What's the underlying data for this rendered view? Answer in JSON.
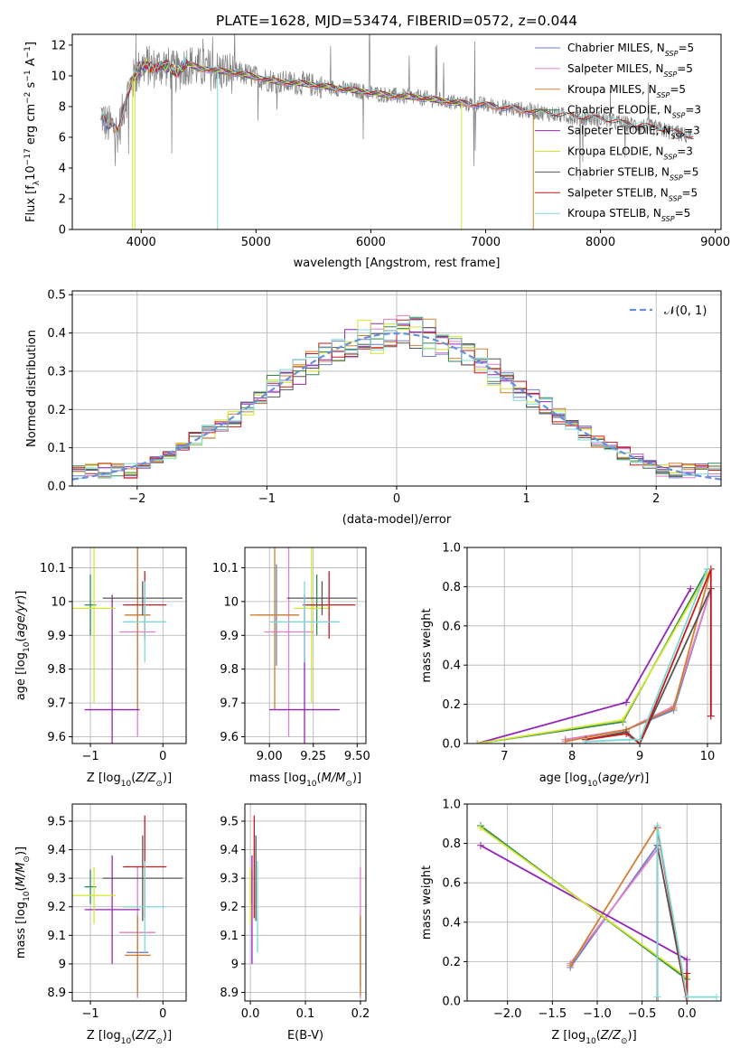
{
  "colors": {
    "chabrier_miles": "#6b7fc6",
    "salpeter_miles": "#e27fc6",
    "kroupa_miles": "#d08030",
    "chabrier_elodie": "#2e8a50",
    "salpeter_elodie": "#9326b4",
    "kroupa_elodie": "#d4e62c",
    "chabrier_stelib": "#555555",
    "salpeter_stelib": "#c81b1b",
    "kroupa_stelib": "#7fd8d8",
    "data": "#808080",
    "normal": "#6a8fdb",
    "grid": "#b0b0b0"
  },
  "chart_data": [
    {
      "type": "line",
      "title": "PLATE=1628, MJD=53474, FIBERID=0572, z=0.044",
      "xlabel": "wavelength [Angstrom, rest frame]",
      "ylabel": "Flux [f_λ10^-17 erg cm^-2 s^-1 A^-1]",
      "xlim": [
        3400,
        9050
      ],
      "ylim": [
        0,
        12.7
      ],
      "xticks": [
        4000,
        5000,
        6000,
        7000,
        8000,
        9000
      ],
      "yticks": [
        0,
        2,
        4,
        6,
        8,
        10,
        12
      ],
      "grid": false,
      "legend": "top-right",
      "continuum_x": [
        3650,
        3700,
        3750,
        3800,
        3850,
        3900,
        3950,
        4000,
        4050,
        4100,
        4200,
        4300,
        4400,
        4500,
        4600,
        4700,
        4800,
        4900,
        5000,
        5200,
        5400,
        5600,
        5800,
        6000,
        6200,
        6400,
        6600,
        6800,
        7000,
        7200,
        7400,
        7600,
        7800,
        8000,
        8200,
        8400,
        8600,
        8800
      ],
      "continuum_y": [
        7.5,
        6.8,
        6.7,
        6.3,
        8.0,
        9.3,
        10.0,
        10.6,
        10.7,
        10.5,
        10.7,
        10.2,
        10.8,
        10.5,
        10.4,
        10.3,
        10.2,
        10.1,
        9.9,
        9.6,
        9.5,
        9.3,
        9.1,
        8.9,
        8.7,
        8.6,
        8.4,
        8.2,
        8.1,
        7.9,
        7.7,
        7.5,
        7.3,
        7.2,
        6.9,
        6.7,
        6.4,
        6.0
      ],
      "series": [
        {
          "name": "Chabrier MILES, N_SSP=5",
          "key": "chabrier_miles",
          "xmin": 3650,
          "xmax": 7410
        },
        {
          "name": "Salpeter MILES, N_SSP=5",
          "key": "salpeter_miles",
          "xmin": 3650,
          "xmax": 7410
        },
        {
          "name": "Kroupa MILES, N_SSP=5",
          "key": "kroupa_miles",
          "xmin": 3650,
          "xmax": 7410
        },
        {
          "name": "Chabrier ELODIE, N_SSP=3",
          "key": "chabrier_elodie",
          "xmin": 3900,
          "xmax": 6790
        },
        {
          "name": "Salpeter ELODIE, N_SSP=3",
          "key": "salpeter_elodie",
          "xmin": 3900,
          "xmax": 6790
        },
        {
          "name": "Kroupa ELODIE, N_SSP=3",
          "key": "kroupa_elodie",
          "xmin": 3900,
          "xmax": 6790
        },
        {
          "name": "Chabrier STELIB, N_SSP=5",
          "key": "chabrier_stelib",
          "xmin": 3650,
          "xmax": 8810
        },
        {
          "name": "Salpeter STELIB, N_SSP=5",
          "key": "salpeter_stelib",
          "xmin": 3650,
          "xmax": 8810
        },
        {
          "name": "Kroupa STELIB, N_SSP=5",
          "key": "kroupa_stelib",
          "xmin": 3650,
          "xmax": 8810
        }
      ],
      "legend_entries": [
        {
          "pre": "Chabrier MILES, N",
          "sub": "SSP",
          "post": "=5"
        },
        {
          "pre": "Salpeter MILES, N",
          "sub": "SSP",
          "post": "=5"
        },
        {
          "pre": "Kroupa MILES, N",
          "sub": "SSP",
          "post": "=5"
        },
        {
          "pre": "Chabrier ELODIE, N",
          "sub": "SSP",
          "post": "=3"
        },
        {
          "pre": "Salpeter ELODIE, N",
          "sub": "SSP",
          "post": "=3"
        },
        {
          "pre": "Kroupa ELODIE, N",
          "sub": "SSP",
          "post": "=3"
        },
        {
          "pre": "Chabrier STELIB, N",
          "sub": "SSP",
          "post": "=5"
        },
        {
          "pre": "Salpeter STELIB, N",
          "sub": "SSP",
          "post": "=5"
        },
        {
          "pre": "Kroupa STELIB, N",
          "sub": "SSP",
          "post": "=5"
        }
      ]
    },
    {
      "type": "line",
      "xlabel": "(data-model)/error",
      "ylabel": "Normed distribution",
      "xlim": [
        -2.5,
        2.5
      ],
      "ylim": [
        0,
        0.51
      ],
      "xticks": [
        -2,
        -1,
        0,
        1,
        2
      ],
      "xtick_labels": [
        "−2",
        "−1",
        "0",
        "1",
        "2"
      ],
      "yticks": [
        0.0,
        0.1,
        0.2,
        0.3,
        0.4,
        0.5
      ],
      "ytick_labels": [
        "0.0",
        "0.1",
        "0.2",
        "0.3",
        "0.4",
        "0.5"
      ],
      "grid": true,
      "legend": "top-right",
      "legend_label": "𝒩(0, 1)",
      "bin_width": 0.1,
      "bin_start": -2.5,
      "description_series": "nine step histograms, one per model, approximately normal"
    },
    {
      "type": "scatter",
      "xlabel": "Z [log10(Z/Z☉)]",
      "ylabel": "age  [log10(age/yr)]",
      "xlim": [
        -1.25,
        0.32
      ],
      "ylim": [
        9.58,
        10.16
      ],
      "xticks": [
        -1,
        0
      ],
      "xtick_labels": [
        "−1",
        "0"
      ],
      "yticks": [
        9.6,
        9.7,
        9.8,
        9.9,
        10.0,
        10.1
      ],
      "grid": true,
      "points": [
        {
          "key": "chabrier_miles",
          "x": -0.35,
          "xerr": 0.15,
          "y": 9.96,
          "yerr": 0.15
        },
        {
          "key": "salpeter_miles",
          "x": -0.35,
          "xerr": 0.25,
          "y": 9.91,
          "yerr": 0.31
        },
        {
          "key": "kroupa_miles",
          "x": -0.35,
          "xerr": 0.18,
          "y": 9.96,
          "yerr": 0.28
        },
        {
          "key": "chabrier_elodie",
          "x": -1.0,
          "xerr": 0.08,
          "y": 9.99,
          "yerr": 0.09
        },
        {
          "key": "salpeter_elodie",
          "x": -0.7,
          "xerr": 0.38,
          "y": 9.68,
          "yerr": 0.34
        },
        {
          "key": "kroupa_elodie",
          "x": -0.95,
          "xerr": 0.3,
          "y": 9.98,
          "yerr": 0.28
        },
        {
          "key": "chabrier_stelib",
          "x": -0.28,
          "xerr": 0.55,
          "y": 10.01,
          "yerr": 0.05
        },
        {
          "key": "salpeter_stelib",
          "x": -0.25,
          "xerr": 0.3,
          "y": 9.99,
          "yerr": 0.1
        },
        {
          "key": "kroupa_stelib",
          "x": -0.25,
          "xerr": 0.3,
          "y": 9.94,
          "yerr": 0.12
        }
      ]
    },
    {
      "type": "scatter",
      "xlabel": "mass [log10(M/M☉)]",
      "xlim": [
        8.86,
        9.55
      ],
      "ylim": [
        9.58,
        10.16
      ],
      "xticks": [
        9.0,
        9.25,
        9.5
      ],
      "xtick_labels": [
        "9.00",
        "9.25",
        "9.50"
      ],
      "yticks": [
        9.6,
        9.7,
        9.8,
        9.9,
        10.0,
        10.1
      ],
      "grid": true,
      "points": [
        {
          "key": "chabrier_miles",
          "x": 9.04,
          "xerr": 0.12,
          "y": 9.96,
          "yerr": 0.15
        },
        {
          "key": "salpeter_miles",
          "x": 9.11,
          "xerr": 0.14,
          "y": 9.91,
          "yerr": 0.31
        },
        {
          "key": "kroupa_miles",
          "x": 9.03,
          "xerr": 0.14,
          "y": 9.96,
          "yerr": 0.28
        },
        {
          "key": "chabrier_elodie",
          "x": 9.27,
          "xerr": 0.06,
          "y": 9.99,
          "yerr": 0.09
        },
        {
          "key": "salpeter_elodie",
          "x": 9.2,
          "xerr": 0.2,
          "y": 9.68,
          "yerr": 0.34
        },
        {
          "key": "kroupa_elodie",
          "x": 9.24,
          "xerr": 0.1,
          "y": 9.98,
          "yerr": 0.28
        },
        {
          "key": "chabrier_stelib",
          "x": 9.3,
          "xerr": 0.2,
          "y": 10.01,
          "yerr": 0.05
        },
        {
          "key": "salpeter_stelib",
          "x": 9.34,
          "xerr": 0.15,
          "y": 9.99,
          "yerr": 0.1
        },
        {
          "key": "kroupa_stelib",
          "x": 9.2,
          "xerr": 0.2,
          "y": 9.94,
          "yerr": 0.12
        }
      ]
    },
    {
      "type": "line",
      "xlabel": "age  [log10(age/yr)]",
      "ylabel": "mass weight",
      "xlim": [
        6.45,
        10.2
      ],
      "ylim": [
        0,
        1.0
      ],
      "xticks": [
        7,
        8,
        9,
        10
      ],
      "yticks": [
        0.0,
        0.2,
        0.4,
        0.6,
        0.8,
        1.0
      ],
      "ytick_labels": [
        "0.0",
        "0.2",
        "0.4",
        "0.6",
        "0.8",
        "1.0"
      ],
      "grid": true,
      "series": [
        {
          "key": "chabrier_miles",
          "x": [
            7.9,
            8.8,
            9.5,
            10.05
          ],
          "y": [
            0.02,
            0.07,
            0.17,
            0.79
          ]
        },
        {
          "key": "salpeter_miles",
          "x": [
            7.9,
            8.8,
            9.5,
            10.05
          ],
          "y": [
            0.02,
            0.07,
            0.19,
            0.79
          ]
        },
        {
          "key": "kroupa_miles",
          "x": [
            7.9,
            8.8,
            9.5,
            10.05
          ],
          "y": [
            0.01,
            0.07,
            0.18,
            0.89
          ]
        },
        {
          "key": "chabrier_elodie",
          "x": [
            6.6,
            8.75,
            10.0
          ],
          "y": [
            0.0,
            0.11,
            0.89
          ]
        },
        {
          "key": "salpeter_elodie",
          "x": [
            6.6,
            8.8,
            9.75
          ],
          "y": [
            0.0,
            0.21,
            0.79
          ]
        },
        {
          "key": "kroupa_elodie",
          "x": [
            6.6,
            8.75,
            10.0
          ],
          "y": [
            0.0,
            0.12,
            0.87
          ]
        },
        {
          "key": "chabrier_stelib",
          "x": [
            8.2,
            8.8,
            9.0,
            10.05,
            10.05
          ],
          "y": [
            0.02,
            0.06,
            0.0,
            0.79,
            0.14
          ]
        },
        {
          "key": "salpeter_stelib",
          "x": [
            8.2,
            8.8,
            9.0,
            10.05,
            10.05
          ],
          "y": [
            0.02,
            0.05,
            0.0,
            0.89,
            0.14
          ]
        },
        {
          "key": "kroupa_stelib",
          "x": [
            8.2,
            8.85,
            9.0,
            10.0
          ],
          "y": [
            0.01,
            0.02,
            0.02,
            0.89
          ]
        }
      ]
    },
    {
      "type": "scatter",
      "xlabel": "Z [log10(Z/Z☉)]",
      "ylabel": "mass [log10(M/M☉)]",
      "xlim": [
        -1.25,
        0.32
      ],
      "ylim": [
        8.87,
        9.56
      ],
      "xticks": [
        -1,
        0
      ],
      "xtick_labels": [
        "−1",
        "0"
      ],
      "yticks": [
        8.9,
        9.0,
        9.1,
        9.2,
        9.3,
        9.4,
        9.5
      ],
      "grid": true,
      "points": [
        {
          "key": "chabrier_miles",
          "x": -0.35,
          "xerr": 0.15,
          "y": 9.04,
          "yerr": 0.12
        },
        {
          "key": "salpeter_miles",
          "x": -0.35,
          "xerr": 0.25,
          "y": 9.11,
          "yerr": 0.23
        },
        {
          "key": "kroupa_miles",
          "x": -0.35,
          "xerr": 0.18,
          "y": 9.03,
          "yerr": 0.14
        },
        {
          "key": "chabrier_elodie",
          "x": -1.0,
          "xerr": 0.08,
          "y": 9.27,
          "yerr": 0.06
        },
        {
          "key": "salpeter_elodie",
          "x": -0.7,
          "xerr": 0.38,
          "y": 9.19,
          "yerr": 0.19
        },
        {
          "key": "kroupa_elodie",
          "x": -0.95,
          "xerr": 0.3,
          "y": 9.24,
          "yerr": 0.1
        },
        {
          "key": "chabrier_stelib",
          "x": -0.28,
          "xerr": 0.55,
          "y": 9.3,
          "yerr": 0.15
        },
        {
          "key": "salpeter_stelib",
          "x": -0.25,
          "xerr": 0.3,
          "y": 9.34,
          "yerr": 0.18
        },
        {
          "key": "kroupa_stelib",
          "x": -0.25,
          "xerr": 0.3,
          "y": 9.2,
          "yerr": 0.16
        }
      ]
    },
    {
      "type": "scatter",
      "xlabel": "E(B-V)",
      "xlim": [
        -0.01,
        0.21
      ],
      "ylim": [
        8.87,
        9.56
      ],
      "xticks": [
        0.0,
        0.1,
        0.2
      ],
      "xtick_labels": [
        "0.0",
        "0.1",
        "0.2"
      ],
      "yticks": [
        8.9,
        9.0,
        9.1,
        9.2,
        9.3,
        9.4,
        9.5
      ],
      "grid": true,
      "points": [
        {
          "key": "chabrier_miles",
          "x": 0.2,
          "xerr": 0,
          "y": 9.04,
          "yerr": 0.12
        },
        {
          "key": "salpeter_miles",
          "x": 0.2,
          "xerr": 0,
          "y": 9.11,
          "yerr": 0.23
        },
        {
          "key": "kroupa_miles",
          "x": 0.2,
          "xerr": 0,
          "y": 9.03,
          "yerr": 0.14
        },
        {
          "key": "chabrier_elodie",
          "x": 0.003,
          "xerr": 0,
          "y": 9.27,
          "yerr": 0.06
        },
        {
          "key": "salpeter_elodie",
          "x": 0.003,
          "xerr": 0,
          "y": 9.19,
          "yerr": 0.19
        },
        {
          "key": "kroupa_elodie",
          "x": 0.0,
          "xerr": 0,
          "y": 9.24,
          "yerr": 0.1
        },
        {
          "key": "chabrier_stelib",
          "x": 0.01,
          "xerr": 0,
          "y": 9.3,
          "yerr": 0.15
        },
        {
          "key": "salpeter_stelib",
          "x": 0.007,
          "xerr": 0,
          "y": 9.34,
          "yerr": 0.18
        },
        {
          "key": "kroupa_stelib",
          "x": 0.013,
          "xerr": 0,
          "y": 9.2,
          "yerr": 0.16
        }
      ]
    },
    {
      "type": "line",
      "xlabel": "Z [log10(Z/Z☉)]",
      "ylabel": "mass weight",
      "xlim": [
        -2.45,
        0.38
      ],
      "ylim": [
        0,
        1.0
      ],
      "xticks": [
        -2.0,
        -1.5,
        -1.0,
        -0.5,
        0.0
      ],
      "xtick_labels": [
        "−2.0",
        "−1.5",
        "−1.0",
        "−0.5",
        "0.0"
      ],
      "yticks": [
        0.0,
        0.2,
        0.4,
        0.6,
        0.8,
        1.0
      ],
      "ytick_labels": [
        "0.0",
        "0.2",
        "0.4",
        "0.6",
        "0.8",
        "1.0"
      ],
      "grid": true,
      "series": [
        {
          "key": "chabrier_miles",
          "x": [
            -1.3,
            -0.33,
            -0.33
          ],
          "y": [
            0.17,
            0.79,
            0.0
          ]
        },
        {
          "key": "salpeter_miles",
          "x": [
            -1.3,
            -0.33,
            -0.33
          ],
          "y": [
            0.19,
            0.77,
            0.0
          ]
        },
        {
          "key": "kroupa_miles",
          "x": [
            -1.3,
            -0.33,
            -0.33
          ],
          "y": [
            0.18,
            0.89,
            0.0
          ]
        },
        {
          "key": "chabrier_elodie",
          "x": [
            -2.3,
            0.0,
            0.0
          ],
          "y": [
            0.89,
            0.11,
            0.0
          ]
        },
        {
          "key": "salpeter_elodie",
          "x": [
            -2.3,
            0.0,
            0.0
          ],
          "y": [
            0.79,
            0.21,
            0.0
          ]
        },
        {
          "key": "kroupa_elodie",
          "x": [
            -2.3,
            0.0,
            0.0
          ],
          "y": [
            0.88,
            0.12,
            0.0
          ]
        },
        {
          "key": "chabrier_stelib",
          "x": [
            -0.33,
            -0.33,
            0.0,
            0.0
          ],
          "y": [
            0.0,
            0.79,
            0.0,
            0.14
          ]
        },
        {
          "key": "salpeter_stelib",
          "x": [
            -0.33,
            -0.33,
            0.0,
            0.0
          ],
          "y": [
            0.0,
            0.88,
            0.0,
            0.14
          ]
        },
        {
          "key": "kroupa_stelib",
          "x": [
            -0.33,
            -0.33,
            0.0,
            0.33
          ],
          "y": [
            0.02,
            0.89,
            0.02,
            0.02
          ]
        }
      ]
    }
  ]
}
